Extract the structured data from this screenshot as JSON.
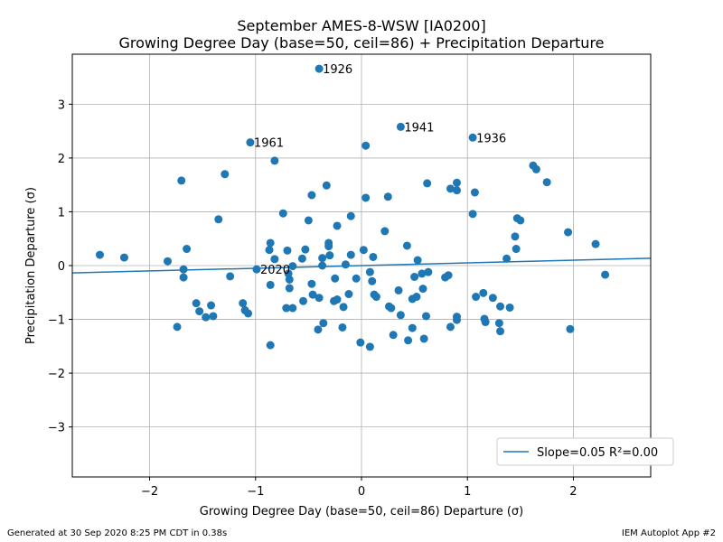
{
  "chart_data": {
    "type": "scatter",
    "title": [
      "September AMES-8-WSW [IA0200]",
      "Growing Degree Day (base=50, ceil=86) + Precipitation Departure"
    ],
    "xlabel": "Growing Degree Day (base=50, ceil=86) Departure (σ)",
    "ylabel": "Precipitation Departure (σ)",
    "xlim": [
      -2.73,
      2.73
    ],
    "ylim": [
      -3.93,
      3.93
    ],
    "xticks": [
      -2,
      -1,
      0,
      1,
      2
    ],
    "yticks": [
      -3,
      -2,
      -1,
      0,
      1,
      2,
      3
    ],
    "grid": true,
    "marker_color": "#1f77b4",
    "line_color": "#1f77b4",
    "regression": {
      "slope": 0.05,
      "intercept": 0.0
    },
    "legend": {
      "position": "lower-right",
      "label": "Slope=0.05 R²=0.00"
    },
    "annotations": [
      {
        "label": "1926",
        "x": -0.4,
        "y": 3.66
      },
      {
        "label": "1941",
        "x": 0.37,
        "y": 2.58
      },
      {
        "label": "1936",
        "x": 1.05,
        "y": 2.38
      },
      {
        "label": "1961",
        "x": -1.05,
        "y": 2.29
      },
      {
        "label": "2020",
        "x": -0.99,
        "y": -0.07
      }
    ],
    "points": [
      [
        -2.47,
        0.2
      ],
      [
        -2.24,
        0.15
      ],
      [
        -1.83,
        0.08
      ],
      [
        -1.74,
        -1.14
      ],
      [
        -1.7,
        1.58
      ],
      [
        -1.68,
        -0.07
      ],
      [
        -1.68,
        -0.22
      ],
      [
        -1.65,
        0.31
      ],
      [
        -1.56,
        -0.7
      ],
      [
        -1.53,
        -0.85
      ],
      [
        -1.47,
        -0.96
      ],
      [
        -1.42,
        -0.74
      ],
      [
        -1.4,
        -0.94
      ],
      [
        -1.35,
        0.86
      ],
      [
        -1.29,
        1.7
      ],
      [
        -1.24,
        -0.2
      ],
      [
        -1.12,
        -0.7
      ],
      [
        -1.1,
        -0.83
      ],
      [
        -1.07,
        -0.89
      ],
      [
        -1.05,
        2.29
      ],
      [
        -0.99,
        -0.07
      ],
      [
        -0.87,
        0.29
      ],
      [
        -0.86,
        0.42
      ],
      [
        -0.86,
        -0.36
      ],
      [
        -0.86,
        -1.48
      ],
      [
        -0.82,
        0.12
      ],
      [
        -0.82,
        1.95
      ],
      [
        -0.74,
        0.97
      ],
      [
        -0.71,
        -0.79
      ],
      [
        -0.7,
        0.28
      ],
      [
        -0.69,
        -0.15
      ],
      [
        -0.68,
        -0.26
      ],
      [
        -0.68,
        -0.42
      ],
      [
        -0.65,
        -0.79
      ],
      [
        -0.65,
        -0.01
      ],
      [
        -0.56,
        0.13
      ],
      [
        -0.55,
        -0.66
      ],
      [
        -0.53,
        0.3
      ],
      [
        -0.5,
        0.84
      ],
      [
        -0.47,
        1.31
      ],
      [
        -0.47,
        -0.34
      ],
      [
        -0.46,
        -0.54
      ],
      [
        -0.41,
        -1.19
      ],
      [
        -0.4,
        3.66
      ],
      [
        -0.4,
        -0.6
      ],
      [
        -0.37,
        0.14
      ],
      [
        -0.37,
        0.0
      ],
      [
        -0.36,
        -1.07
      ],
      [
        -0.33,
        1.49
      ],
      [
        -0.31,
        0.42
      ],
      [
        -0.31,
        0.36
      ],
      [
        -0.3,
        0.19
      ],
      [
        -0.26,
        -0.66
      ],
      [
        -0.25,
        -0.24
      ],
      [
        -0.23,
        0.74
      ],
      [
        -0.23,
        -0.63
      ],
      [
        -0.18,
        -1.15
      ],
      [
        -0.17,
        -0.77
      ],
      [
        -0.15,
        0.02
      ],
      [
        -0.12,
        -0.53
      ],
      [
        -0.1,
        0.92
      ],
      [
        -0.1,
        0.2
      ],
      [
        -0.05,
        -0.24
      ],
      [
        -0.01,
        -1.43
      ],
      [
        0.02,
        0.29
      ],
      [
        0.04,
        1.26
      ],
      [
        0.04,
        2.23
      ],
      [
        0.08,
        -0.12
      ],
      [
        0.08,
        -1.51
      ],
      [
        0.1,
        -0.29
      ],
      [
        0.11,
        0.16
      ],
      [
        0.12,
        -0.54
      ],
      [
        0.14,
        -0.58
      ],
      [
        0.22,
        0.64
      ],
      [
        0.25,
        1.28
      ],
      [
        0.26,
        -0.76
      ],
      [
        0.28,
        -0.79
      ],
      [
        0.3,
        -1.29
      ],
      [
        0.35,
        -0.46
      ],
      [
        0.37,
        2.58
      ],
      [
        0.37,
        -0.92
      ],
      [
        0.43,
        0.37
      ],
      [
        0.44,
        -1.39
      ],
      [
        0.48,
        -0.62
      ],
      [
        0.48,
        -1.16
      ],
      [
        0.5,
        -0.21
      ],
      [
        0.52,
        -0.58
      ],
      [
        0.53,
        0.1
      ],
      [
        0.57,
        -0.15
      ],
      [
        0.58,
        -0.43
      ],
      [
        0.59,
        -1.36
      ],
      [
        0.61,
        -0.94
      ],
      [
        0.62,
        1.53
      ],
      [
        0.63,
        -0.12
      ],
      [
        0.79,
        -0.22
      ],
      [
        0.82,
        -0.18
      ],
      [
        0.84,
        -1.14
      ],
      [
        0.84,
        1.43
      ],
      [
        0.9,
        1.54
      ],
      [
        0.9,
        1.4
      ],
      [
        0.9,
        -1.01
      ],
      [
        0.9,
        -0.95
      ],
      [
        1.05,
        2.38
      ],
      [
        1.05,
        0.96
      ],
      [
        1.07,
        1.36
      ],
      [
        1.08,
        -0.58
      ],
      [
        1.15,
        -0.51
      ],
      [
        1.16,
        -0.99
      ],
      [
        1.17,
        -1.05
      ],
      [
        1.24,
        -0.6
      ],
      [
        1.3,
        -1.07
      ],
      [
        1.31,
        -1.22
      ],
      [
        1.31,
        -0.76
      ],
      [
        1.37,
        0.13
      ],
      [
        1.4,
        -0.78
      ],
      [
        1.45,
        0.54
      ],
      [
        1.46,
        0.31
      ],
      [
        1.47,
        0.88
      ],
      [
        1.5,
        0.84
      ],
      [
        1.62,
        1.86
      ],
      [
        1.65,
        1.79
      ],
      [
        1.75,
        1.55
      ],
      [
        1.95,
        0.62
      ],
      [
        1.97,
        -1.18
      ],
      [
        2.21,
        0.4
      ],
      [
        2.3,
        -0.17
      ]
    ]
  },
  "footer": {
    "left": "Generated at 30 Sep 2020 8:25 PM CDT in 0.38s",
    "right": "IEM Autoplot App #2"
  }
}
